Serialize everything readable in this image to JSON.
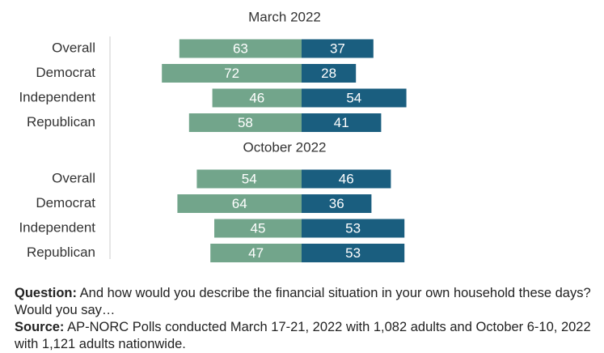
{
  "chart_data": {
    "type": "bar",
    "orientation": "horizontal",
    "stacked": "diverging",
    "xlim": [
      -100,
      100
    ],
    "grid": false,
    "legend": "none",
    "colors": {
      "left": "#72a58b",
      "right": "#1a5e7f"
    },
    "panels": [
      {
        "title": "March 2022",
        "categories": [
          "Overall",
          "Democrat",
          "Independent",
          "Republican"
        ],
        "series": [
          {
            "values": [
              63,
              72,
              46,
              58
            ]
          },
          {
            "values": [
              37,
              28,
              54,
              41
            ]
          }
        ]
      },
      {
        "title": "October 2022",
        "categories": [
          "Overall",
          "Democrat",
          "Independent",
          "Republican"
        ],
        "series": [
          {
            "values": [
              54,
              64,
              45,
              47
            ]
          },
          {
            "values": [
              46,
              36,
              53,
              53
            ]
          }
        ]
      }
    ]
  },
  "notes": {
    "question_label": "Question:",
    "question_text": " And how would you describe the financial situation in your own household these days? Would you say…",
    "source_label": "Source:",
    "source_text": " AP-NORC Polls conducted March 17-21, 2022 with 1,082 adults and October 6-10, 2022 with 1,121 adults nationwide."
  }
}
